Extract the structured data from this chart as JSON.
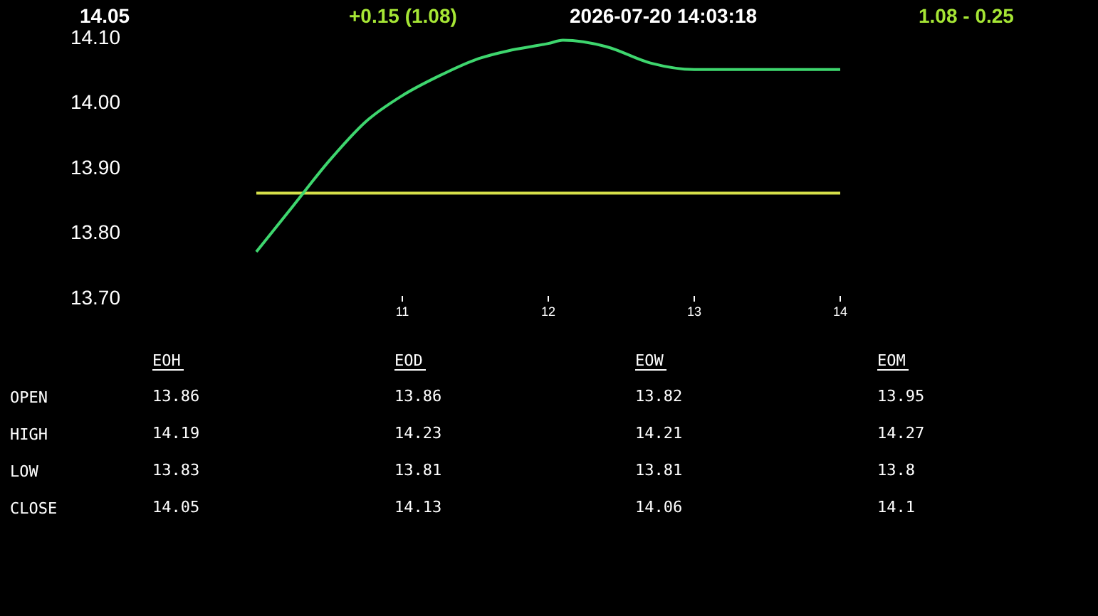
{
  "chart_data": [
    {
      "type": "line",
      "annotations": [
        "14.05",
        "+0.15  (1.08)",
        "2026-07-20   14:03:18",
        "1.08  -  0.25"
      ],
      "x": [
        10,
        10.25,
        10.5,
        10.75,
        11,
        11.25,
        11.5,
        11.75,
        12,
        12.1,
        12.4,
        12.7,
        13,
        13.5,
        14
      ],
      "series": [
        {
          "color": "#3ed66e",
          "values": [
            13.77,
            13.84,
            13.91,
            13.97,
            14.01,
            14.04,
            14.065,
            14.08,
            14.09,
            14.095,
            14.085,
            14.06,
            14.05,
            14.05,
            14.05
          ]
        }
      ],
      "ref_lines": [
        {
          "axis": "y",
          "value": 13.86,
          "color": "#d6e04a"
        }
      ],
      "xlim": [
        10,
        14
      ],
      "xticks": [
        11,
        12,
        13,
        14
      ],
      "ylim": [
        13.7,
        14.1
      ],
      "yticks": [
        {
          "value": 13.7,
          "label": "13.70"
        },
        {
          "value": 13.8,
          "label": "13.80"
        },
        {
          "value": 13.9,
          "label": "13.90"
        },
        {
          "value": 14,
          "label": "14.00"
        },
        {
          "value": 14.1,
          "label": "14.10"
        }
      ]
    },
    {
      "type": "other",
      "categories": [
        "EOH",
        "EOD",
        "EOW",
        "EOM"
      ],
      "y_categories": [
        "OPEN",
        "HIGH",
        "LOW",
        "CLOSE"
      ],
      "cell_labels": [
        [
          "13.86",
          "13.86",
          "13.82",
          "13.95"
        ],
        [
          "14.19",
          "14.23",
          "14.21",
          "14.27"
        ],
        [
          "13.83",
          "13.81",
          "13.81",
          "13.8"
        ],
        [
          "14.05",
          "14.13",
          "14.06",
          "14.1"
        ]
      ]
    }
  ]
}
